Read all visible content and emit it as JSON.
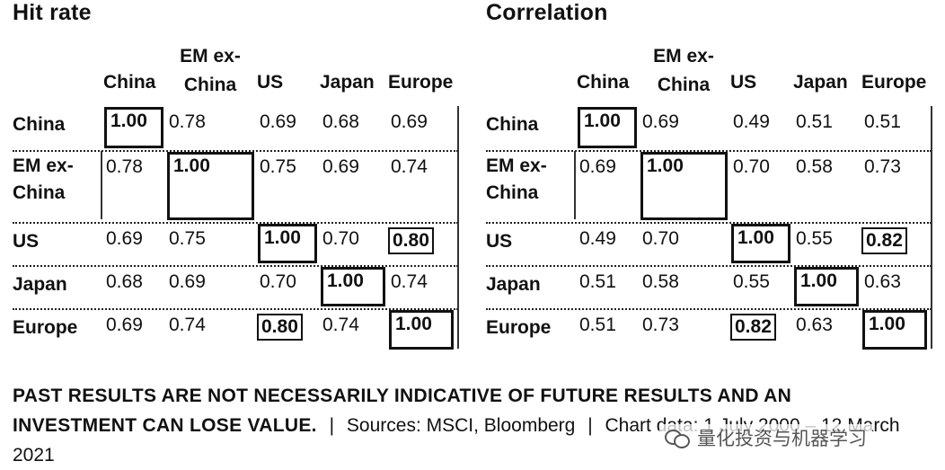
{
  "chart_data": [
    {
      "type": "table",
      "title": "Hit rate",
      "columns": [
        "China",
        "EM ex-China",
        "US",
        "Japan",
        "Europe"
      ],
      "rows": [
        "China",
        "EM ex-China",
        "US",
        "Japan",
        "Europe"
      ],
      "values": [
        [
          1.0,
          0.78,
          0.69,
          0.68,
          0.69
        ],
        [
          0.78,
          1.0,
          0.75,
          0.69,
          0.74
        ],
        [
          0.69,
          0.75,
          1.0,
          0.7,
          0.8
        ],
        [
          0.68,
          0.69,
          0.7,
          1.0,
          0.74
        ],
        [
          0.69,
          0.74,
          0.8,
          0.74,
          1.0
        ]
      ]
    },
    {
      "type": "table",
      "title": "Correlation",
      "columns": [
        "China",
        "EM ex-China",
        "US",
        "Japan",
        "Europe"
      ],
      "rows": [
        "China",
        "EM ex-China",
        "US",
        "Japan",
        "Europe"
      ],
      "values": [
        [
          1.0,
          0.69,
          0.49,
          0.51,
          0.51
        ],
        [
          0.69,
          1.0,
          0.7,
          0.58,
          0.73
        ],
        [
          0.49,
          0.7,
          1.0,
          0.55,
          0.82
        ],
        [
          0.51,
          0.58,
          0.55,
          1.0,
          0.63
        ],
        [
          0.51,
          0.73,
          0.82,
          0.63,
          1.0
        ]
      ]
    }
  ],
  "footer": {
    "disclaimer": "PAST RESULTS ARE NOT NECESSARILY INDICATIVE OF FUTURE RESULTS AND AN INVESTMENT CAN LOSE VALUE.",
    "separator": "|",
    "sources": "Sources: MSCI, Bloomberg",
    "chart_date": "Chart data: 1 July 2000 – 12 March 2021"
  },
  "watermark": {
    "text": "量化投资与机器学习"
  }
}
